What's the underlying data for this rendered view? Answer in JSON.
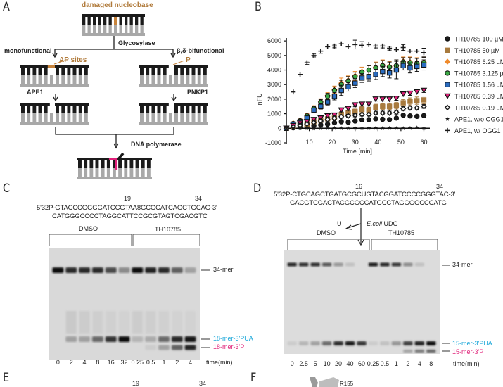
{
  "panels": {
    "A": {
      "letter": "A",
      "damaged_label": "damaged nucleobase",
      "glycosylase_label": "Glycosylase",
      "mono_label": "monofunctional",
      "bi_label": "β,δ-bifunctional",
      "ap_label": "AP sites",
      "p_label": "P",
      "ape1_label": "APE1",
      "pnkp1_label": "PNKP1",
      "polymerase_label": "DNA polymerase",
      "colors": {
        "damage": "#c8843c",
        "repair": "#e0207a",
        "strand_top": "#1a1a1a",
        "strand_bottom": "#a8a8a8"
      }
    },
    "B": {
      "letter": "B"
    },
    "C": {
      "letter": "C",
      "pos1": "19",
      "pos2": "34",
      "seq_top": "5'32P-GTACCCGGGGATCCGTAA8GCGCATCAGCTGCAG-3'",
      "seq_bottom": "CATGGGCCCCTAGGCATTCCGCGTAGTCGACGTC",
      "group1": "DMSO",
      "group2": "TH10785",
      "band_top": "34-mer",
      "band_mid": "18-mer-3'PUA",
      "band_low": "18-mer-3'P",
      "lanes": [
        "0",
        "2",
        "4",
        "8",
        "16",
        "32",
        "0.25",
        "0.5",
        "1",
        "2",
        "4"
      ],
      "time_label": "time(min)"
    },
    "D": {
      "letter": "D",
      "pos1": "16",
      "pos2": "34",
      "seq_top": "5'32P-CTGCAGCTGATGCGCUGTACGGATCCCCGGGTAC-3'",
      "seq_bottom": "GACGTCGACTACGCGCCATGCCTAGGGGCCCATG",
      "u_label": "U",
      "enzyme_italic": "E.coli",
      "enzyme_rest": " UDG",
      "group1": "DMSO",
      "group2": "TH10785",
      "band_top": "34-mer",
      "band_mid": "15-mer-3'PUA",
      "band_low": "15-mer-3'P",
      "lanes": [
        "0",
        "2.5",
        "5",
        "10",
        "20",
        "40",
        "60",
        "0.25",
        "0.5",
        "1",
        "2",
        "4",
        "8"
      ],
      "time_label": "time(min)"
    },
    "E": {
      "letter": "E",
      "pos1": "19",
      "pos2": "34"
    },
    "F": {
      "letter": "F",
      "residue_label": "R155"
    }
  },
  "chart_data": {
    "type": "scatter",
    "title": "",
    "xlabel": "Time [min]",
    "ylabel": "nFU",
    "xlim": [
      0,
      62
    ],
    "ylim": [
      -1000,
      6200
    ],
    "xticks": [
      10,
      20,
      30,
      40,
      50,
      60
    ],
    "yticks": [
      -1000,
      0,
      1000,
      2000,
      3000,
      4000,
      5000,
      6000
    ],
    "legend_position": "right",
    "x": [
      0,
      3,
      6,
      9,
      12,
      15,
      18,
      21,
      24,
      27,
      30,
      33,
      36,
      39,
      42,
      45,
      48,
      51,
      54,
      57,
      60
    ],
    "series": [
      {
        "name": "TH10785 100 µM",
        "marker": "circle",
        "color": "#1a1a1a",
        "values": [
          0,
          30,
          60,
          100,
          180,
          230,
          280,
          380,
          450,
          420,
          500,
          580,
          600,
          650,
          620,
          600,
          700,
          900,
          850,
          820,
          870
        ],
        "error": [
          40,
          40,
          40,
          50,
          60,
          60,
          60,
          60,
          60,
          60,
          70,
          70,
          70,
          70,
          70,
          70,
          70,
          70,
          70,
          70,
          70
        ]
      },
      {
        "name": "TH10785 50 µM",
        "marker": "square",
        "color": "#a87a3e",
        "values": [
          0,
          150,
          250,
          300,
          450,
          550,
          650,
          750,
          950,
          1050,
          1150,
          1300,
          1250,
          1450,
          1500,
          1500,
          1550,
          1750,
          1850,
          1900,
          1950
        ],
        "error": [
          60,
          80,
          90,
          100,
          110,
          120,
          130,
          140,
          150,
          160,
          170,
          180,
          190,
          200,
          200,
          210,
          220,
          230,
          240,
          250,
          260
        ]
      },
      {
        "name": "TH10785 6.25 µM",
        "marker": "diamond",
        "color": "#f08a2a",
        "values": [
          0,
          350,
          550,
          900,
          1400,
          1850,
          2250,
          2650,
          3100,
          3300,
          3600,
          3900,
          4000,
          4200,
          4350,
          4250,
          4300,
          4600,
          4550,
          4500,
          4550
        ],
        "error": [
          60,
          80,
          100,
          120,
          150,
          180,
          200,
          250,
          350,
          300,
          300,
          300,
          300,
          350,
          350,
          350,
          400,
          300,
          350,
          350,
          350
        ]
      },
      {
        "name": "TH10785 3.125 µM",
        "marker": "circle",
        "color": "#3aa845",
        "values": [
          0,
          320,
          520,
          850,
          1350,
          1800,
          2200,
          2600,
          3000,
          3250,
          3550,
          3850,
          4000,
          4150,
          4300,
          4200,
          4300,
          4550,
          4500,
          4450,
          4500
        ],
        "error": [
          60,
          80,
          100,
          120,
          150,
          180,
          200,
          250,
          300,
          300,
          300,
          300,
          300,
          350,
          350,
          350,
          400,
          300,
          350,
          350,
          350
        ]
      },
      {
        "name": "TH10785 1.56 µM",
        "marker": "square",
        "color": "#2a6cc0",
        "values": [
          0,
          280,
          450,
          700,
          1250,
          1500,
          1800,
          2200,
          2600,
          2850,
          3100,
          3450,
          3550,
          3700,
          3900,
          3800,
          4000,
          4300,
          4150,
          4250,
          4350
        ],
        "error": [
          60,
          80,
          100,
          120,
          150,
          180,
          200,
          250,
          350,
          300,
          300,
          300,
          300,
          350,
          350,
          350,
          600,
          300,
          350,
          350,
          350
        ]
      },
      {
        "name": "TH10785 0.39 µM",
        "marker": "triangle-down",
        "color": "#e0207a",
        "values": [
          0,
          180,
          350,
          450,
          600,
          700,
          850,
          900,
          1250,
          1350,
          1600,
          1650,
          1650,
          2000,
          2000,
          2000,
          2050,
          2350,
          2400,
          2500,
          2600
        ],
        "error": [
          50,
          60,
          70,
          80,
          90,
          100,
          100,
          100,
          120,
          120,
          120,
          120,
          120,
          130,
          130,
          130,
          130,
          140,
          140,
          140,
          140
        ]
      },
      {
        "name": "TH10785 0.19 µM",
        "marker": "diamond-open",
        "color": "#1a1a1a",
        "values": [
          0,
          100,
          200,
          300,
          400,
          500,
          600,
          700,
          800,
          850,
          900,
          950,
          950,
          1050,
          1050,
          1050,
          1100,
          1350,
          1400,
          1400,
          1500
        ],
        "error": [
          50,
          60,
          70,
          80,
          90,
          100,
          100,
          100,
          110,
          110,
          110,
          110,
          110,
          120,
          120,
          120,
          120,
          130,
          130,
          130,
          130
        ]
      },
      {
        "name": "APE1, w/o OGG1",
        "marker": "star",
        "color": "#1a1a1a",
        "values": [
          0,
          0,
          10,
          0,
          -20,
          0,
          0,
          10,
          0,
          0,
          20,
          0,
          10,
          20,
          0,
          10,
          0,
          0,
          10,
          40,
          0
        ],
        "error": [
          0,
          0,
          0,
          0,
          0,
          0,
          0,
          80,
          0,
          0,
          80,
          0,
          80,
          0,
          0,
          0,
          0,
          0,
          0,
          0,
          0
        ]
      },
      {
        "name": "APE1, w/ OGG1",
        "marker": "plus",
        "color": "#1a1a1a",
        "values": [
          null,
          2500,
          3700,
          4500,
          5000,
          5300,
          5600,
          5650,
          5800,
          5600,
          5750,
          5700,
          5750,
          5650,
          5650,
          5500,
          5400,
          5550,
          5300,
          5300,
          5200
        ],
        "error": [
          0,
          0,
          0,
          120,
          100,
          150,
          0,
          120,
          0,
          0,
          300,
          250,
          0,
          130,
          130,
          130,
          0,
          200,
          0,
          0,
          300
        ]
      }
    ]
  }
}
